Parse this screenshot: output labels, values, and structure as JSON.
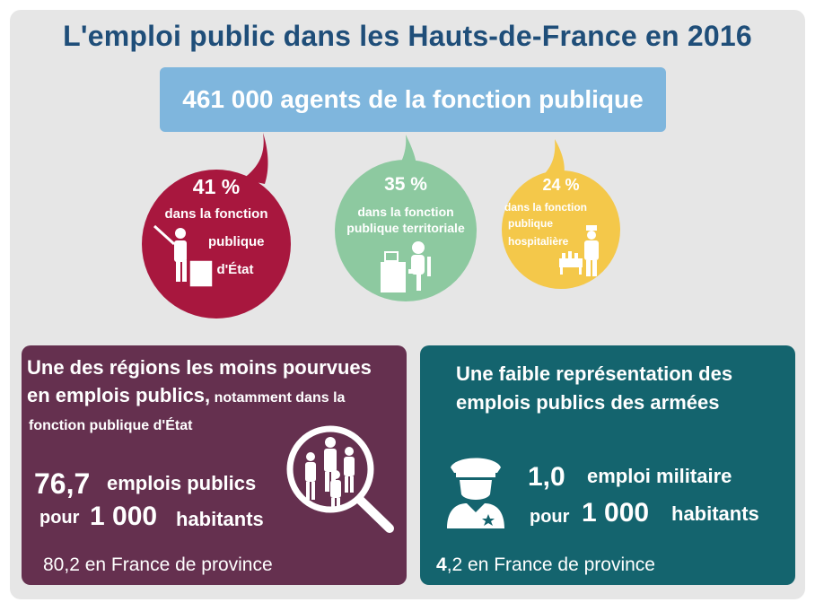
{
  "title": "L'emploi public dans les Hauts-de-France en 2016",
  "banner": "461 000 agents de la fonction publique",
  "bubbles": [
    {
      "percent": "41 %",
      "line1": "dans la fonction",
      "line2": "publique",
      "line3": "d'État",
      "color": "#a8173e",
      "icon": "teacher-icon"
    },
    {
      "percent": "35 %",
      "line1": "dans la fonction",
      "line2": "publique territoriale",
      "color": "#8dc9a0",
      "icon": "office-worker-icon"
    },
    {
      "percent": "24 %",
      "line1": "dans la fonction",
      "line2": "publique",
      "line3": "hospitalière",
      "color": "#f4c84a",
      "icon": "nurse-icon"
    }
  ],
  "left_panel": {
    "heading1": "Une des régions les moins pourvues",
    "heading2": "en emplois publics,",
    "heading2_small": " notamment dans la",
    "heading3": "fonction publique d'État",
    "value": "76,7",
    "unit1": "emplois publics",
    "pour": "pour",
    "pop": "1 000",
    "habitants": "habitants",
    "province": "80,2 en France de province",
    "icon": "people-magnifier-icon",
    "color": "#65304f"
  },
  "right_panel": {
    "heading1": "Une faible représentation des",
    "heading2": "emplois publics des armées",
    "value": "1,0",
    "unit1": "emploi militaire",
    "pour": "pour",
    "pop": "1 000",
    "habitants": "habitants",
    "province_bold": "4",
    "province_rest": ",2 en France de province",
    "icon": "soldier-icon",
    "color": "#14646e"
  }
}
